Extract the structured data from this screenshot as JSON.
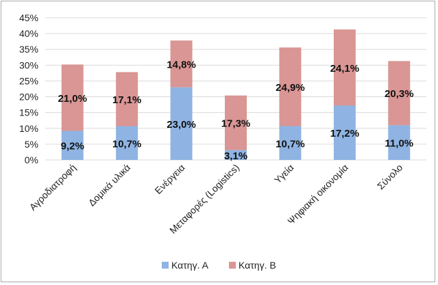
{
  "chart_data": {
    "type": "bar",
    "stacked": true,
    "categories": [
      "Αγροδιατροφή",
      "Δομικά υλικά",
      "Ενέργεια",
      "Μεταφορές (Logistics)",
      "Υγεία",
      "Ψηφιακή οικονομία",
      "Σύνολο"
    ],
    "series": [
      {
        "name": "Κατηγ. Α",
        "color": "#8fb4e3",
        "values": [
          9.2,
          10.7,
          23.0,
          3.1,
          10.7,
          17.2,
          11.0
        ],
        "labels": [
          "9,2%",
          "10,7%",
          "23,0%",
          "3,1%",
          "10,7%",
          "17,2%",
          "11,0%"
        ]
      },
      {
        "name": "Κατηγ. Β",
        "color": "#d99694",
        "values": [
          21.0,
          17.1,
          14.8,
          17.3,
          24.9,
          24.1,
          20.3
        ],
        "labels": [
          "21,0%",
          "17,1%",
          "14,8%",
          "17,3%",
          "24,9%",
          "24,1%",
          "20,3%"
        ]
      }
    ],
    "ylim": [
      0,
      45
    ],
    "yticks": [
      0,
      5,
      10,
      15,
      20,
      25,
      30,
      35,
      40,
      45
    ],
    "ytick_labels": [
      "0%",
      "5%",
      "10%",
      "15%",
      "20%",
      "25%",
      "30%",
      "35%",
      "40%",
      "45%"
    ],
    "grid": true,
    "legend_position": "bottom",
    "title": "",
    "xlabel": "",
    "ylabel": ""
  }
}
